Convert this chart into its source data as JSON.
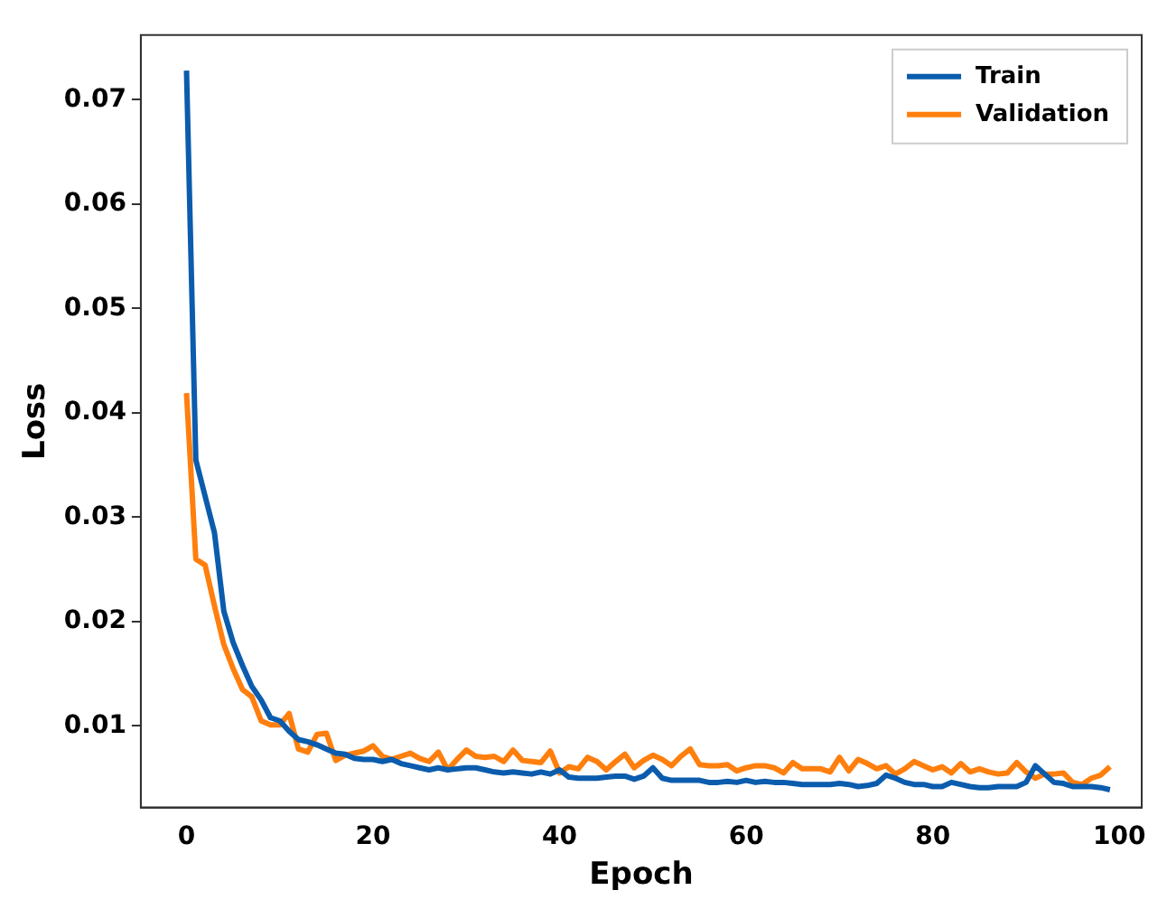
{
  "chart_data": {
    "type": "line",
    "xlabel": "Epoch",
    "ylabel": "Loss",
    "x": [
      0,
      1,
      2,
      3,
      4,
      5,
      6,
      7,
      8,
      9,
      10,
      11,
      12,
      13,
      14,
      15,
      16,
      17,
      18,
      19,
      20,
      21,
      22,
      23,
      24,
      25,
      26,
      27,
      28,
      29,
      30,
      31,
      32,
      33,
      34,
      35,
      36,
      37,
      38,
      39,
      40,
      41,
      42,
      43,
      44,
      45,
      46,
      47,
      48,
      49,
      50,
      51,
      52,
      53,
      54,
      55,
      56,
      57,
      58,
      59,
      60,
      61,
      62,
      63,
      64,
      65,
      66,
      67,
      68,
      69,
      70,
      71,
      72,
      73,
      74,
      75,
      76,
      77,
      78,
      79,
      80,
      81,
      82,
      83,
      84,
      85,
      86,
      87,
      88,
      89,
      90,
      91,
      92,
      93,
      94,
      95,
      96,
      97,
      98,
      99
    ],
    "series": [
      {
        "name": "Train",
        "color": "#0b5cad",
        "values": [
          0.0728,
          0.0355,
          0.032,
          0.0285,
          0.021,
          0.018,
          0.0158,
          0.0138,
          0.0125,
          0.0108,
          0.0105,
          0.0095,
          0.0087,
          0.0085,
          0.0082,
          0.0078,
          0.0074,
          0.0073,
          0.0069,
          0.0068,
          0.0068,
          0.0066,
          0.0068,
          0.0064,
          0.0062,
          0.006,
          0.0058,
          0.006,
          0.0058,
          0.0059,
          0.006,
          0.006,
          0.0058,
          0.0056,
          0.0055,
          0.0056,
          0.0055,
          0.0054,
          0.0056,
          0.0054,
          0.0058,
          0.0051,
          0.005,
          0.005,
          0.005,
          0.0051,
          0.0052,
          0.0052,
          0.0049,
          0.0052,
          0.006,
          0.005,
          0.0048,
          0.0048,
          0.0048,
          0.0048,
          0.0046,
          0.0046,
          0.0047,
          0.0046,
          0.0048,
          0.0046,
          0.0047,
          0.0046,
          0.0046,
          0.0045,
          0.0044,
          0.0044,
          0.0044,
          0.0044,
          0.0045,
          0.0044,
          0.0042,
          0.0043,
          0.0045,
          0.0053,
          0.005,
          0.0046,
          0.0044,
          0.0044,
          0.0042,
          0.0042,
          0.0046,
          0.0044,
          0.0042,
          0.0041,
          0.0041,
          0.0042,
          0.0042,
          0.0042,
          0.0046,
          0.0062,
          0.0054,
          0.0046,
          0.0045,
          0.0042,
          0.0042,
          0.0042,
          0.0041,
          0.0039
        ]
      },
      {
        "name": "Validation",
        "color": "#ff7f0e",
        "values": [
          0.0419,
          0.026,
          0.0254,
          0.0215,
          0.0178,
          0.0155,
          0.0135,
          0.0128,
          0.0105,
          0.0101,
          0.0101,
          0.0112,
          0.0078,
          0.0075,
          0.0092,
          0.0093,
          0.0067,
          0.0072,
          0.0074,
          0.0076,
          0.0081,
          0.0071,
          0.0068,
          0.0071,
          0.0074,
          0.0069,
          0.0066,
          0.0075,
          0.0058,
          0.0068,
          0.0077,
          0.0071,
          0.007,
          0.0071,
          0.0066,
          0.0077,
          0.0067,
          0.0066,
          0.0065,
          0.0076,
          0.0055,
          0.0061,
          0.0059,
          0.007,
          0.0066,
          0.0058,
          0.0066,
          0.0073,
          0.006,
          0.0067,
          0.0072,
          0.0068,
          0.0062,
          0.0071,
          0.0078,
          0.0063,
          0.0062,
          0.0062,
          0.0063,
          0.0057,
          0.006,
          0.0062,
          0.0062,
          0.006,
          0.0055,
          0.0065,
          0.0059,
          0.0059,
          0.0059,
          0.0056,
          0.007,
          0.0057,
          0.0068,
          0.0064,
          0.0059,
          0.0062,
          0.0054,
          0.0059,
          0.0066,
          0.0062,
          0.0058,
          0.0061,
          0.0055,
          0.0064,
          0.0056,
          0.0059,
          0.0056,
          0.0054,
          0.0055,
          0.0065,
          0.0056,
          0.005,
          0.0054,
          0.0054,
          0.0055,
          0.0046,
          0.0044,
          0.005,
          0.0053,
          0.0061
        ]
      }
    ],
    "xlim": [
      -4.9,
      102.4
    ],
    "ylim": [
      0.0022,
      0.0762
    ],
    "xticks": [
      0,
      20,
      40,
      60,
      80,
      100
    ],
    "yticks": [
      {
        "value": 0.01,
        "label": "0.01"
      },
      {
        "value": 0.02,
        "label": "0.02"
      },
      {
        "value": 0.03,
        "label": "0.03"
      },
      {
        "value": 0.04,
        "label": "0.04"
      },
      {
        "value": 0.05,
        "label": "0.05"
      },
      {
        "value": 0.06,
        "label": "0.06"
      },
      {
        "value": 0.07,
        "label": "0.07"
      }
    ],
    "grid": false,
    "legend": "top right",
    "marker": "none",
    "line_style": "solid"
  }
}
